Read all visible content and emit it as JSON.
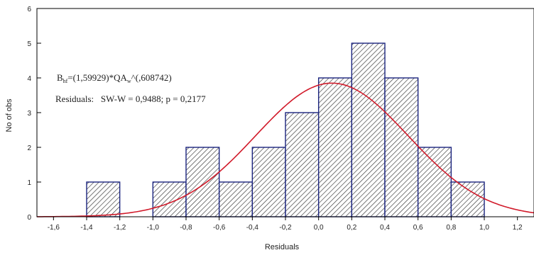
{
  "chart_data": {
    "type": "bar",
    "xlabel": "Residuals",
    "ylabel": "No of obs",
    "xlim": [
      -1.7,
      1.3
    ],
    "ylim": [
      0,
      6
    ],
    "x_ticks": [
      "-1,6",
      "-1,4",
      "-1,2",
      "-1,0",
      "-0,8",
      "-0,6",
      "-0,4",
      "-0,2",
      "0,0",
      "0,2",
      "0,4",
      "0,6",
      "0,8",
      "1,0",
      "1,2"
    ],
    "x_tick_values": [
      -1.6,
      -1.4,
      -1.2,
      -1.0,
      -0.8,
      -0.6,
      -0.4,
      -0.2,
      0.0,
      0.2,
      0.4,
      0.6,
      0.8,
      1.0,
      1.2
    ],
    "y_ticks": [
      "0",
      "1",
      "2",
      "3",
      "4",
      "5",
      "6"
    ],
    "bins": [
      {
        "from": -1.4,
        "to": -1.2,
        "count": 1
      },
      {
        "from": -1.2,
        "to": -1.0,
        "count": 0
      },
      {
        "from": -1.0,
        "to": -0.8,
        "count": 1
      },
      {
        "from": -0.8,
        "to": -0.6,
        "count": 2
      },
      {
        "from": -0.6,
        "to": -0.4,
        "count": 1
      },
      {
        "from": -0.4,
        "to": -0.2,
        "count": 2
      },
      {
        "from": -0.2,
        "to": 0.0,
        "count": 3
      },
      {
        "from": 0.0,
        "to": 0.2,
        "count": 4
      },
      {
        "from": 0.2,
        "to": 0.4,
        "count": 5
      },
      {
        "from": 0.4,
        "to": 0.6,
        "count": 4
      },
      {
        "from": 0.6,
        "to": 0.8,
        "count": 2
      },
      {
        "from": 0.8,
        "to": 1.0,
        "count": 1
      }
    ],
    "normal_curve": {
      "mean": 0.08,
      "sd": 0.46,
      "peak": 3.85
    },
    "annotations": {
      "formula_main": "B",
      "formula_sub": "hf",
      "formula_mid": "=(1,59929)*QA",
      "formula_sub2": "w",
      "formula_end": "^(,608742)",
      "residuals_line": "Residuals:   SW-W = 0,9488; p = 0,2177"
    },
    "grid": false,
    "bar_fill": "hatched",
    "colors": {
      "bar_edge": "#1a237e",
      "hatch": "#333333",
      "curve": "#d11a2a",
      "axis": "#000000",
      "text": "#222222"
    }
  }
}
